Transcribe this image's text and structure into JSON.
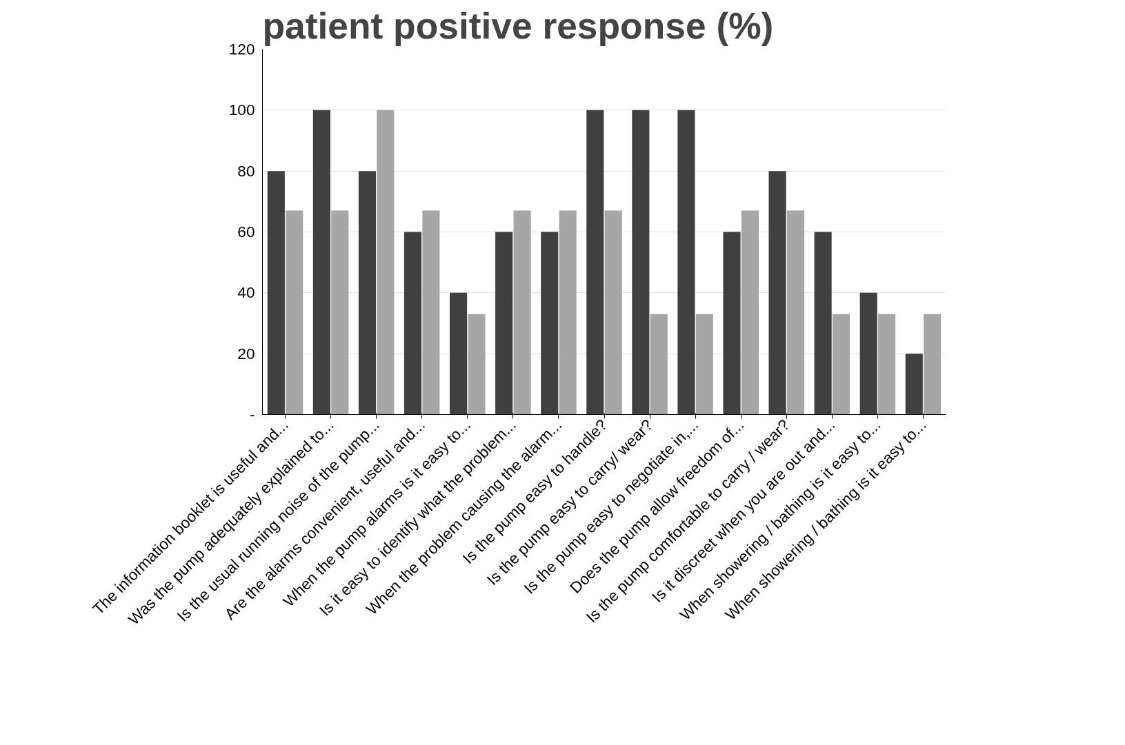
{
  "chart_data": {
    "type": "bar",
    "title": "patient positive response (%)",
    "categories": [
      "The information booklet is useful and...",
      "Was the pump adequately explained to...",
      "Is the usual running noise of the pump...",
      "Are the alarms convenient, useful and...",
      "When the pump alarms is it easy to...",
      "Is it easy to identify what the problem...",
      "When the problem causing the alarm...",
      "Is the pump easy to handle?",
      "Is the pump easy to carry/ wear?",
      "Is the pump easy to negotiate in,...",
      "Does the pump allow freedom of...",
      "Is the pump comfortable to carry / wear?",
      "Is it discreet when you are out and...",
      "When showering / bathing is it easy to...",
      "When showering / bathing is it easy to..."
    ],
    "series": [
      {
        "color": "#404040",
        "values": [
          80,
          100,
          80,
          60,
          40,
          60,
          60,
          100,
          100,
          100,
          60,
          80,
          60,
          40,
          20
        ]
      },
      {
        "color": "#a6a6a6",
        "values": [
          67,
          67,
          100,
          67,
          33,
          67,
          67,
          67,
          33,
          33,
          67,
          67,
          33,
          33,
          33
        ]
      }
    ],
    "ylim": [
      0,
      120
    ],
    "yticks": [
      {
        "value": 0,
        "label": "-"
      },
      20,
      40,
      60,
      80,
      100,
      120
    ],
    "grid": "y"
  }
}
